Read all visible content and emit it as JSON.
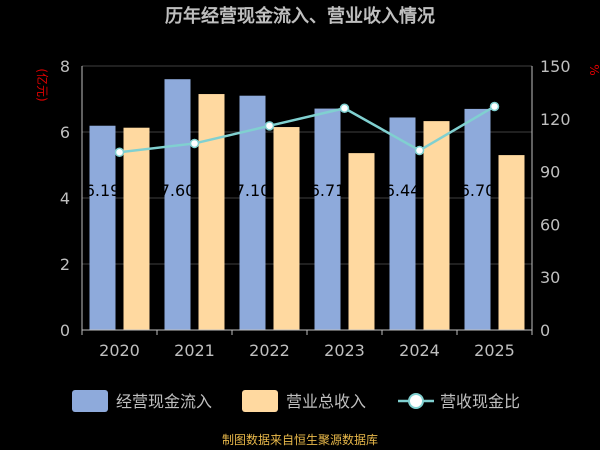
{
  "chart_data": {
    "type": "bar",
    "title": "历年经营现金流入、营业收入情况",
    "categories": [
      "2020",
      "2021",
      "2022",
      "2023",
      "2024",
      "2025"
    ],
    "series": [
      {
        "name": "经营现金流入",
        "type": "bar",
        "axis": "left",
        "color": "#8eaadb",
        "values": [
          6.19,
          7.6,
          7.1,
          6.71,
          6.44,
          6.7
        ]
      },
      {
        "name": "营业总收入",
        "type": "bar",
        "axis": "left",
        "color": "#ffd9a0",
        "values": [
          6.13,
          7.15,
          6.15,
          5.36,
          6.33,
          5.3
        ]
      },
      {
        "name": "营收现金比",
        "type": "line",
        "axis": "right",
        "color": "#80d0d0",
        "values": [
          101,
          106,
          116,
          126,
          102,
          127
        ]
      }
    ],
    "bar_labels": [
      "6.19",
      "7.60",
      "7.10",
      "6.71",
      "6.44",
      "6.70"
    ],
    "y_left": {
      "label": "(亿元)",
      "ticks": [
        0,
        2,
        4,
        6,
        8
      ],
      "ylim": [
        0,
        8
      ]
    },
    "y_right": {
      "label": "%",
      "ticks": [
        0,
        30,
        60,
        90,
        120,
        150
      ],
      "ylim": [
        0,
        150
      ]
    },
    "grid": true,
    "legend_position": "bottom",
    "source": "制图数据来自恒生聚源数据库",
    "colors": {
      "background": "#000000",
      "title": "#bfbfbf",
      "axis_text": "#bfbfbf",
      "axis_unit": "#e00000",
      "grid": "#404040",
      "source": "#e8b84a"
    }
  }
}
